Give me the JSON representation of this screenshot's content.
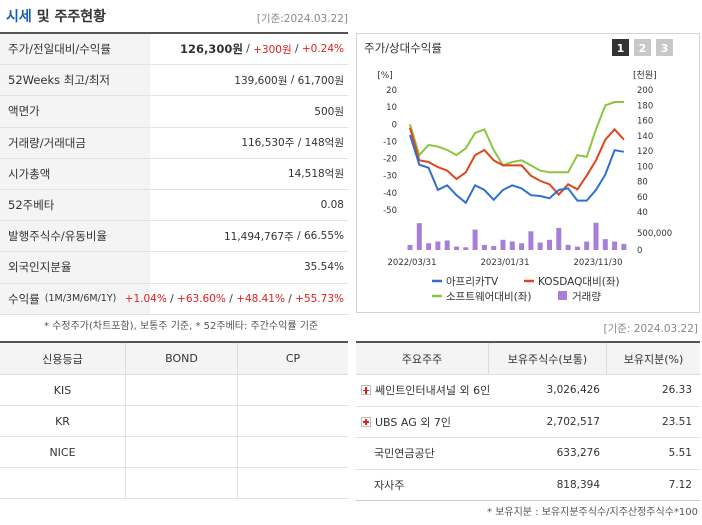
{
  "header": {
    "title_main": "시세",
    "title_rest": "및 주주현황",
    "date": "[기준:2024.03.22]"
  },
  "quote_table": {
    "separator": " / ",
    "rows": [
      {
        "label": "주가/전일대비/수익률",
        "values": [
          {
            "text": "126,300원",
            "bold": true
          },
          {
            "text": "+300원",
            "color": "#e0211e"
          },
          {
            "text": "+0.24%",
            "color": "#e0211e"
          }
        ]
      },
      {
        "label": "52Weeks 최고/최저",
        "values": [
          {
            "text": "139,600원"
          },
          {
            "text": "61,700원"
          }
        ]
      },
      {
        "label": "액면가",
        "values": [
          {
            "text": "500원"
          }
        ]
      },
      {
        "label": "거래량/거래대금",
        "values": [
          {
            "text": "116,530주"
          },
          {
            "text": "148억원"
          }
        ]
      },
      {
        "label": "시가총액",
        "values": [
          {
            "text": "14,518억원"
          }
        ]
      },
      {
        "label": "52주베타",
        "values": [
          {
            "text": "0.08"
          }
        ]
      },
      {
        "label": "발행주식수/유동비율",
        "values": [
          {
            "text": "11,494,767주"
          },
          {
            "text": "66.55%"
          }
        ]
      },
      {
        "label": "외국인지분율",
        "values": [
          {
            "text": "35.54%"
          }
        ]
      },
      {
        "label": "수익률",
        "sublabel": "(1M/3M/6M/1Y)",
        "values": [
          {
            "text": "+1.04%",
            "color": "#e0211e"
          },
          {
            "text": "+63.60%",
            "color": "#e0211e"
          },
          {
            "text": "+48.41%",
            "color": "#e0211e"
          },
          {
            "text": "+55.73%",
            "color": "#e0211e"
          }
        ]
      }
    ]
  },
  "footnote": "* 수정주가(차트포함), 보통주 기준, * 52주베타: 주간수익률 기준",
  "chart_panel": {
    "title": "주가/상대수익률",
    "buttons": [
      "1",
      "2",
      "3"
    ],
    "active_button": 0
  },
  "chart_data": {
    "type": "line",
    "categories": [
      "2022/03/31",
      null,
      null,
      null,
      null,
      null,
      null,
      null,
      null,
      null,
      "2023/01/31",
      null,
      null,
      null,
      null,
      null,
      null,
      null,
      null,
      null,
      "2023/11/30",
      null,
      null,
      null
    ],
    "ylabel": "[%]",
    "ylim": [
      -50,
      20
    ],
    "yticks": [
      20,
      10,
      0,
      -10,
      -20,
      -30,
      -40,
      -50
    ],
    "y2label": "[천원]",
    "y2lim": [
      40,
      200
    ],
    "y2ticks": [
      200,
      180,
      160,
      140,
      120,
      100,
      80,
      60,
      40
    ],
    "series": [
      {
        "name": "아프리카TV",
        "color": "#2f6fd0",
        "axis": "y2",
        "values": [
          141,
          102,
          98,
          69,
          75,
          62,
          52,
          75,
          69,
          56,
          69,
          75,
          71,
          62,
          61,
          58,
          69,
          71,
          55,
          55,
          69,
          89,
          121,
          119
        ]
      },
      {
        "name": "KOSDAQ대비(좌)",
        "color": "#e0461e",
        "values": [
          -2,
          -21,
          -22,
          -25,
          -27,
          -32,
          -28,
          -18,
          -15,
          -21,
          -24,
          -24,
          -24,
          -30,
          -33,
          -35,
          -41,
          -35,
          -38,
          -30,
          -21,
          -9,
          -3,
          -9
        ]
      },
      {
        "name": "소프트웨어대비(좌)",
        "color": "#8cc63f",
        "values": [
          0,
          -18,
          -12,
          -13,
          -15,
          -18,
          -14,
          -5,
          -3,
          -15,
          -24,
          -22,
          -21,
          -24,
          -27,
          -28,
          -28,
          -28,
          -18,
          -19,
          -3,
          11,
          13,
          13
        ]
      }
    ],
    "volume": {
      "name": "거래량",
      "color": "#a77fd6",
      "values": [
        150000,
        790000,
        200000,
        250000,
        280000,
        100000,
        80000,
        600000,
        150000,
        120000,
        300000,
        250000,
        200000,
        550000,
        220000,
        300000,
        650000,
        150000,
        100000,
        250000,
        800000,
        320000,
        250000,
        180000
      ],
      "ylim": [
        0,
        1000000
      ],
      "yticks": [
        {
          "value": 500000,
          "label": "500,000"
        },
        0
      ]
    }
  },
  "date_note": "[기준: 2024.03.22]",
  "credit_table": {
    "headers": [
      "신용등급",
      "BOND",
      "CP"
    ],
    "agencies": [
      "KIS",
      "KR",
      "NICE"
    ]
  },
  "holders_table": {
    "headers": [
      "주요주주",
      "보유주식수(보통)",
      "보유지분(%)"
    ],
    "rows": [
      {
        "name": "쎄인트인터내셔널 외 6인",
        "shares": "3,026,426",
        "pct": "26.33",
        "expand": true
      },
      {
        "name": "UBS AG 외 7인",
        "shares": "2,702,517",
        "pct": "23.51",
        "expand": true
      },
      {
        "name": "국민연금공단",
        "shares": "633,276",
        "pct": "5.51",
        "expand": false
      },
      {
        "name": "자사주",
        "shares": "818,394",
        "pct": "7.12",
        "expand": false
      }
    ]
  },
  "holders_footnote": "* 보유지분 : 보유지분주식수/지주산정주식수*100"
}
